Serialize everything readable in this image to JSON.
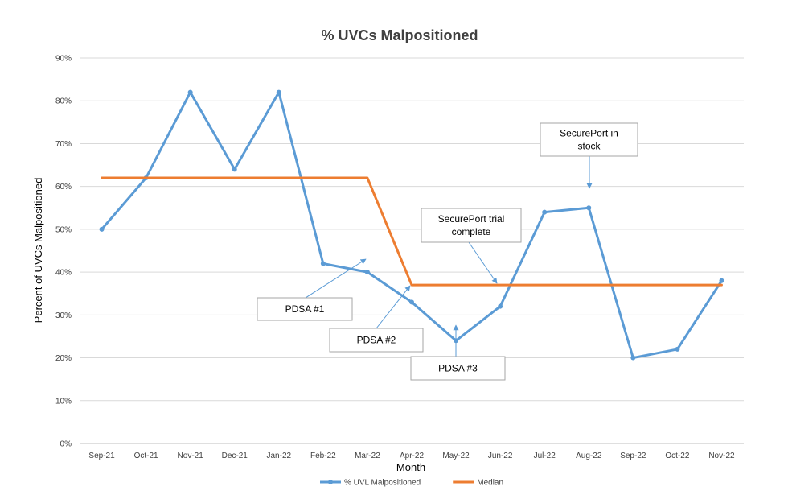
{
  "chart_data": {
    "type": "line",
    "title": "% UVCs Malpositioned",
    "xlabel": "Month",
    "ylabel": "Percent of UVCs Malpositioned",
    "categories": [
      "Sep-21",
      "Oct-21",
      "Nov-21",
      "Dec-21",
      "Jan-22",
      "Feb-22",
      "Mar-22",
      "Apr-22",
      "May-22",
      "Jun-22",
      "Jul-22",
      "Aug-22",
      "Sep-22",
      "Oct-22",
      "Nov-22"
    ],
    "ylim": [
      0,
      90
    ],
    "yticks": [
      0,
      10,
      20,
      30,
      40,
      50,
      60,
      70,
      80,
      90
    ],
    "ytick_labels": [
      "0%",
      "10%",
      "20%",
      "30%",
      "40%",
      "50%",
      "60%",
      "70%",
      "80%",
      "90%"
    ],
    "grid": true,
    "legend_position": "bottom",
    "series": [
      {
        "name": "% UVL Malpositioned",
        "color": "#5b9bd5",
        "markers": true,
        "values": [
          50,
          62,
          82,
          64,
          82,
          42,
          40,
          33,
          24,
          32,
          54,
          55,
          20,
          22,
          38
        ]
      },
      {
        "name": "Median",
        "color": "#ed7d31",
        "markers": false,
        "x": [
          0,
          1,
          2,
          3,
          4,
          5,
          6,
          7,
          8,
          9,
          10,
          11,
          12,
          13,
          14
        ],
        "values": [
          62,
          62,
          62,
          62,
          62,
          62,
          62,
          37,
          37,
          37,
          37,
          37,
          37,
          37,
          37
        ]
      }
    ],
    "annotations": [
      {
        "id": "pdsa1",
        "lines": [
          "PDSA #1"
        ]
      },
      {
        "id": "pdsa2",
        "lines": [
          "PDSA #2"
        ]
      },
      {
        "id": "pdsa3",
        "lines": [
          "PDSA #3"
        ]
      },
      {
        "id": "trial",
        "lines": [
          "SecurePort trial",
          "complete"
        ]
      },
      {
        "id": "stock",
        "lines": [
          "SecurePort in",
          "stock"
        ]
      }
    ]
  }
}
